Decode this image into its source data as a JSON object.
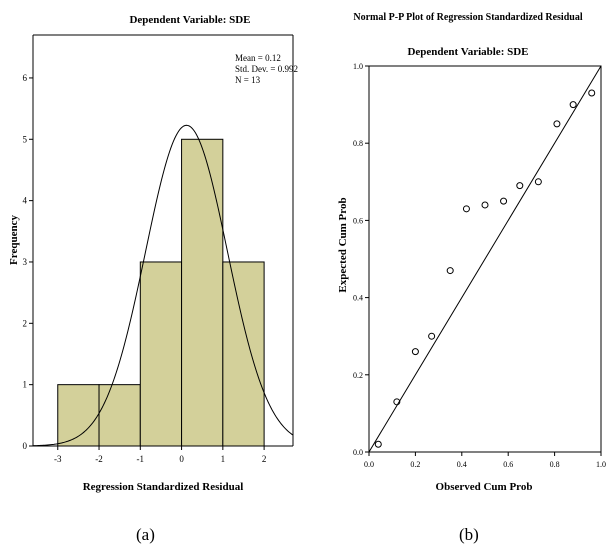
{
  "chart_data": [
    {
      "type": "histogram",
      "title": "Dependent Variable: SDE",
      "xlabel": "Regression Standardized Residual",
      "ylabel": "Frequency",
      "xlim": [
        -3.6,
        2.7
      ],
      "ylim": [
        0,
        6.7
      ],
      "x_ticks": [
        "-3",
        "-2",
        "-1",
        "0",
        "1",
        "2"
      ],
      "x_tick_values": [
        -3,
        -2,
        -1,
        0,
        1,
        2
      ],
      "y_ticks": [
        "0",
        "1",
        "2",
        "3",
        "4",
        "5",
        "6"
      ],
      "y_tick_values": [
        0,
        1,
        2,
        3,
        4,
        5,
        6
      ],
      "bins": [
        {
          "x0": -3,
          "x1": -2,
          "count": 1
        },
        {
          "x0": -2,
          "x1": -1,
          "count": 1
        },
        {
          "x0": -1,
          "x1": 0,
          "count": 3
        },
        {
          "x0": 0,
          "x1": 1,
          "count": 5
        },
        {
          "x0": 1,
          "x1": 2,
          "count": 3
        }
      ],
      "stats": [
        "Mean = 0.12",
        "Std. Dev. = 0.992",
        "N = 13"
      ],
      "normal_curve": {
        "mean": 0.12,
        "sd": 0.992,
        "n": 13,
        "bin_width": 1
      },
      "bar_color": "#d3d09a",
      "caption": "(a)"
    },
    {
      "type": "scatter",
      "title": "Normal P-P Plot of Regression Standardized Residual",
      "subtitle": "Dependent Variable: SDE",
      "xlabel": "Observed Cum Prob",
      "ylabel": "Expected Cum Prob",
      "xlim": [
        0,
        1
      ],
      "ylim": [
        0,
        1
      ],
      "x_ticks": [
        "0.0",
        "0.2",
        "0.4",
        "0.6",
        "0.8",
        "1.0"
      ],
      "x_tick_values": [
        0,
        0.2,
        0.4,
        0.6,
        0.8,
        1.0
      ],
      "y_ticks": [
        "0.0",
        "0.2",
        "0.4",
        "0.6",
        "0.8",
        "1.0"
      ],
      "y_tick_values": [
        0,
        0.2,
        0.4,
        0.6,
        0.8,
        1.0
      ],
      "points": [
        [
          0.04,
          0.02
        ],
        [
          0.12,
          0.13
        ],
        [
          0.2,
          0.26
        ],
        [
          0.27,
          0.3
        ],
        [
          0.35,
          0.47
        ],
        [
          0.42,
          0.63
        ],
        [
          0.5,
          0.64
        ],
        [
          0.58,
          0.65
        ],
        [
          0.65,
          0.69
        ],
        [
          0.73,
          0.7
        ],
        [
          0.81,
          0.85
        ],
        [
          0.88,
          0.9
        ],
        [
          0.96,
          0.93
        ]
      ],
      "reference_line": [
        [
          0,
          0
        ],
        [
          1,
          1
        ]
      ],
      "caption": "(b)"
    }
  ]
}
